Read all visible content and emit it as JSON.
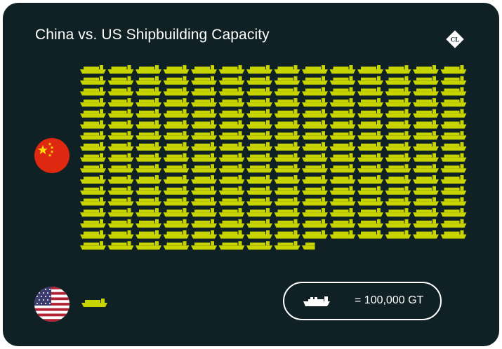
{
  "header": {
    "title": "China vs. US Shipbuilding Capacity"
  },
  "logo": {
    "icon": "cl-diamond-logo-icon",
    "text": "CL"
  },
  "colors": {
    "background": "#0f2124",
    "ship": "#c8d400",
    "text": "#ffffff"
  },
  "legend": {
    "icon": "ship-icon",
    "label": "= 100,000 GT"
  },
  "chart_data": {
    "type": "pictogram",
    "title": "China vs. US Shipbuilding Capacity",
    "unit_label": "= 100,000 GT",
    "series": [
      {
        "name": "China",
        "flag_icon": "china-flag-icon",
        "values": [
          232.5
        ]
      },
      {
        "name": "United States",
        "flag_icon": "us-flag-icon",
        "values": [
          1
        ]
      }
    ]
  }
}
